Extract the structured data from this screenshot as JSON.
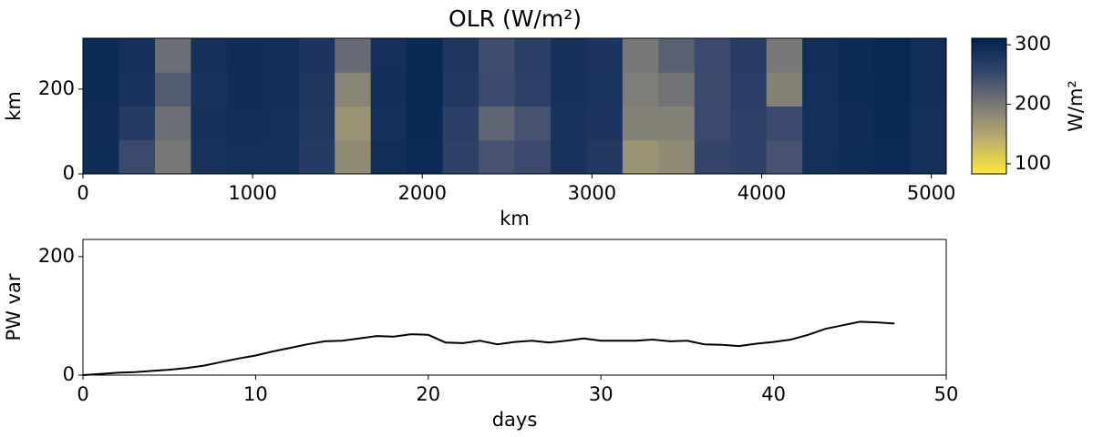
{
  "chart_data": [
    {
      "type": "heatmap",
      "title": "OLR (W/m²)",
      "xlabel": "km",
      "ylabel": "km",
      "xlim": [
        0,
        5088
      ],
      "ylim": [
        0,
        320
      ],
      "xticks": [
        0,
        1000,
        2000,
        3000,
        4000,
        5000
      ],
      "yticks": [
        0,
        200
      ],
      "z": [
        [
          295,
          250,
          200,
          285,
          290,
          288,
          270,
          180,
          292,
          298,
          260,
          240,
          250,
          285,
          275,
          170,
          180,
          255,
          260,
          240,
          290,
          295,
          298,
          288
        ],
        [
          293,
          270,
          210,
          286,
          292,
          290,
          275,
          170,
          290,
          300,
          265,
          220,
          240,
          283,
          280,
          190,
          190,
          250,
          262,
          250,
          288,
          294,
          300,
          290
        ],
        [
          296,
          285,
          230,
          284,
          293,
          291,
          278,
          185,
          291,
          301,
          275,
          250,
          262,
          286,
          282,
          195,
          205,
          248,
          265,
          190,
          290,
          296,
          301,
          291
        ],
        [
          297,
          290,
          210,
          286,
          294,
          292,
          280,
          215,
          290,
          300,
          278,
          245,
          265,
          286,
          280,
          200,
          225,
          250,
          268,
          200,
          292,
          296,
          302,
          292
        ]
      ],
      "colorbar": {
        "label": "W/m²",
        "lim": [
          83,
          311
        ],
        "ticks": [
          100,
          200,
          300
        ]
      }
    },
    {
      "type": "line",
      "xlabel": "days",
      "ylabel": "PW var",
      "xlim": [
        0,
        50
      ],
      "ylim": [
        0,
        229
      ],
      "xticks": [
        0,
        10,
        20,
        30,
        40,
        50
      ],
      "yticks": [
        0,
        200
      ],
      "x": [
        0,
        1,
        2,
        3,
        4,
        5,
        6,
        7,
        8,
        9,
        10,
        11,
        12,
        13,
        14,
        15,
        16,
        17,
        18,
        19,
        20,
        21,
        22,
        23,
        24,
        25,
        26,
        27,
        28,
        29,
        30,
        31,
        32,
        33,
        34,
        35,
        36,
        37,
        38,
        39,
        40,
        41,
        42,
        43,
        44,
        45,
        46,
        47
      ],
      "series": [
        {
          "color": "#000000",
          "values": [
            0,
            2,
            4,
            5,
            7,
            9,
            12,
            16,
            22,
            28,
            33,
            40,
            46,
            52,
            57,
            58,
            62,
            66,
            65,
            69,
            68,
            55,
            54,
            58,
            52,
            56,
            58,
            55,
            58,
            62,
            58,
            58,
            58,
            60,
            57,
            58,
            52,
            51,
            49,
            53,
            56,
            60,
            68,
            78,
            84,
            90,
            89,
            87
          ]
        }
      ]
    }
  ]
}
